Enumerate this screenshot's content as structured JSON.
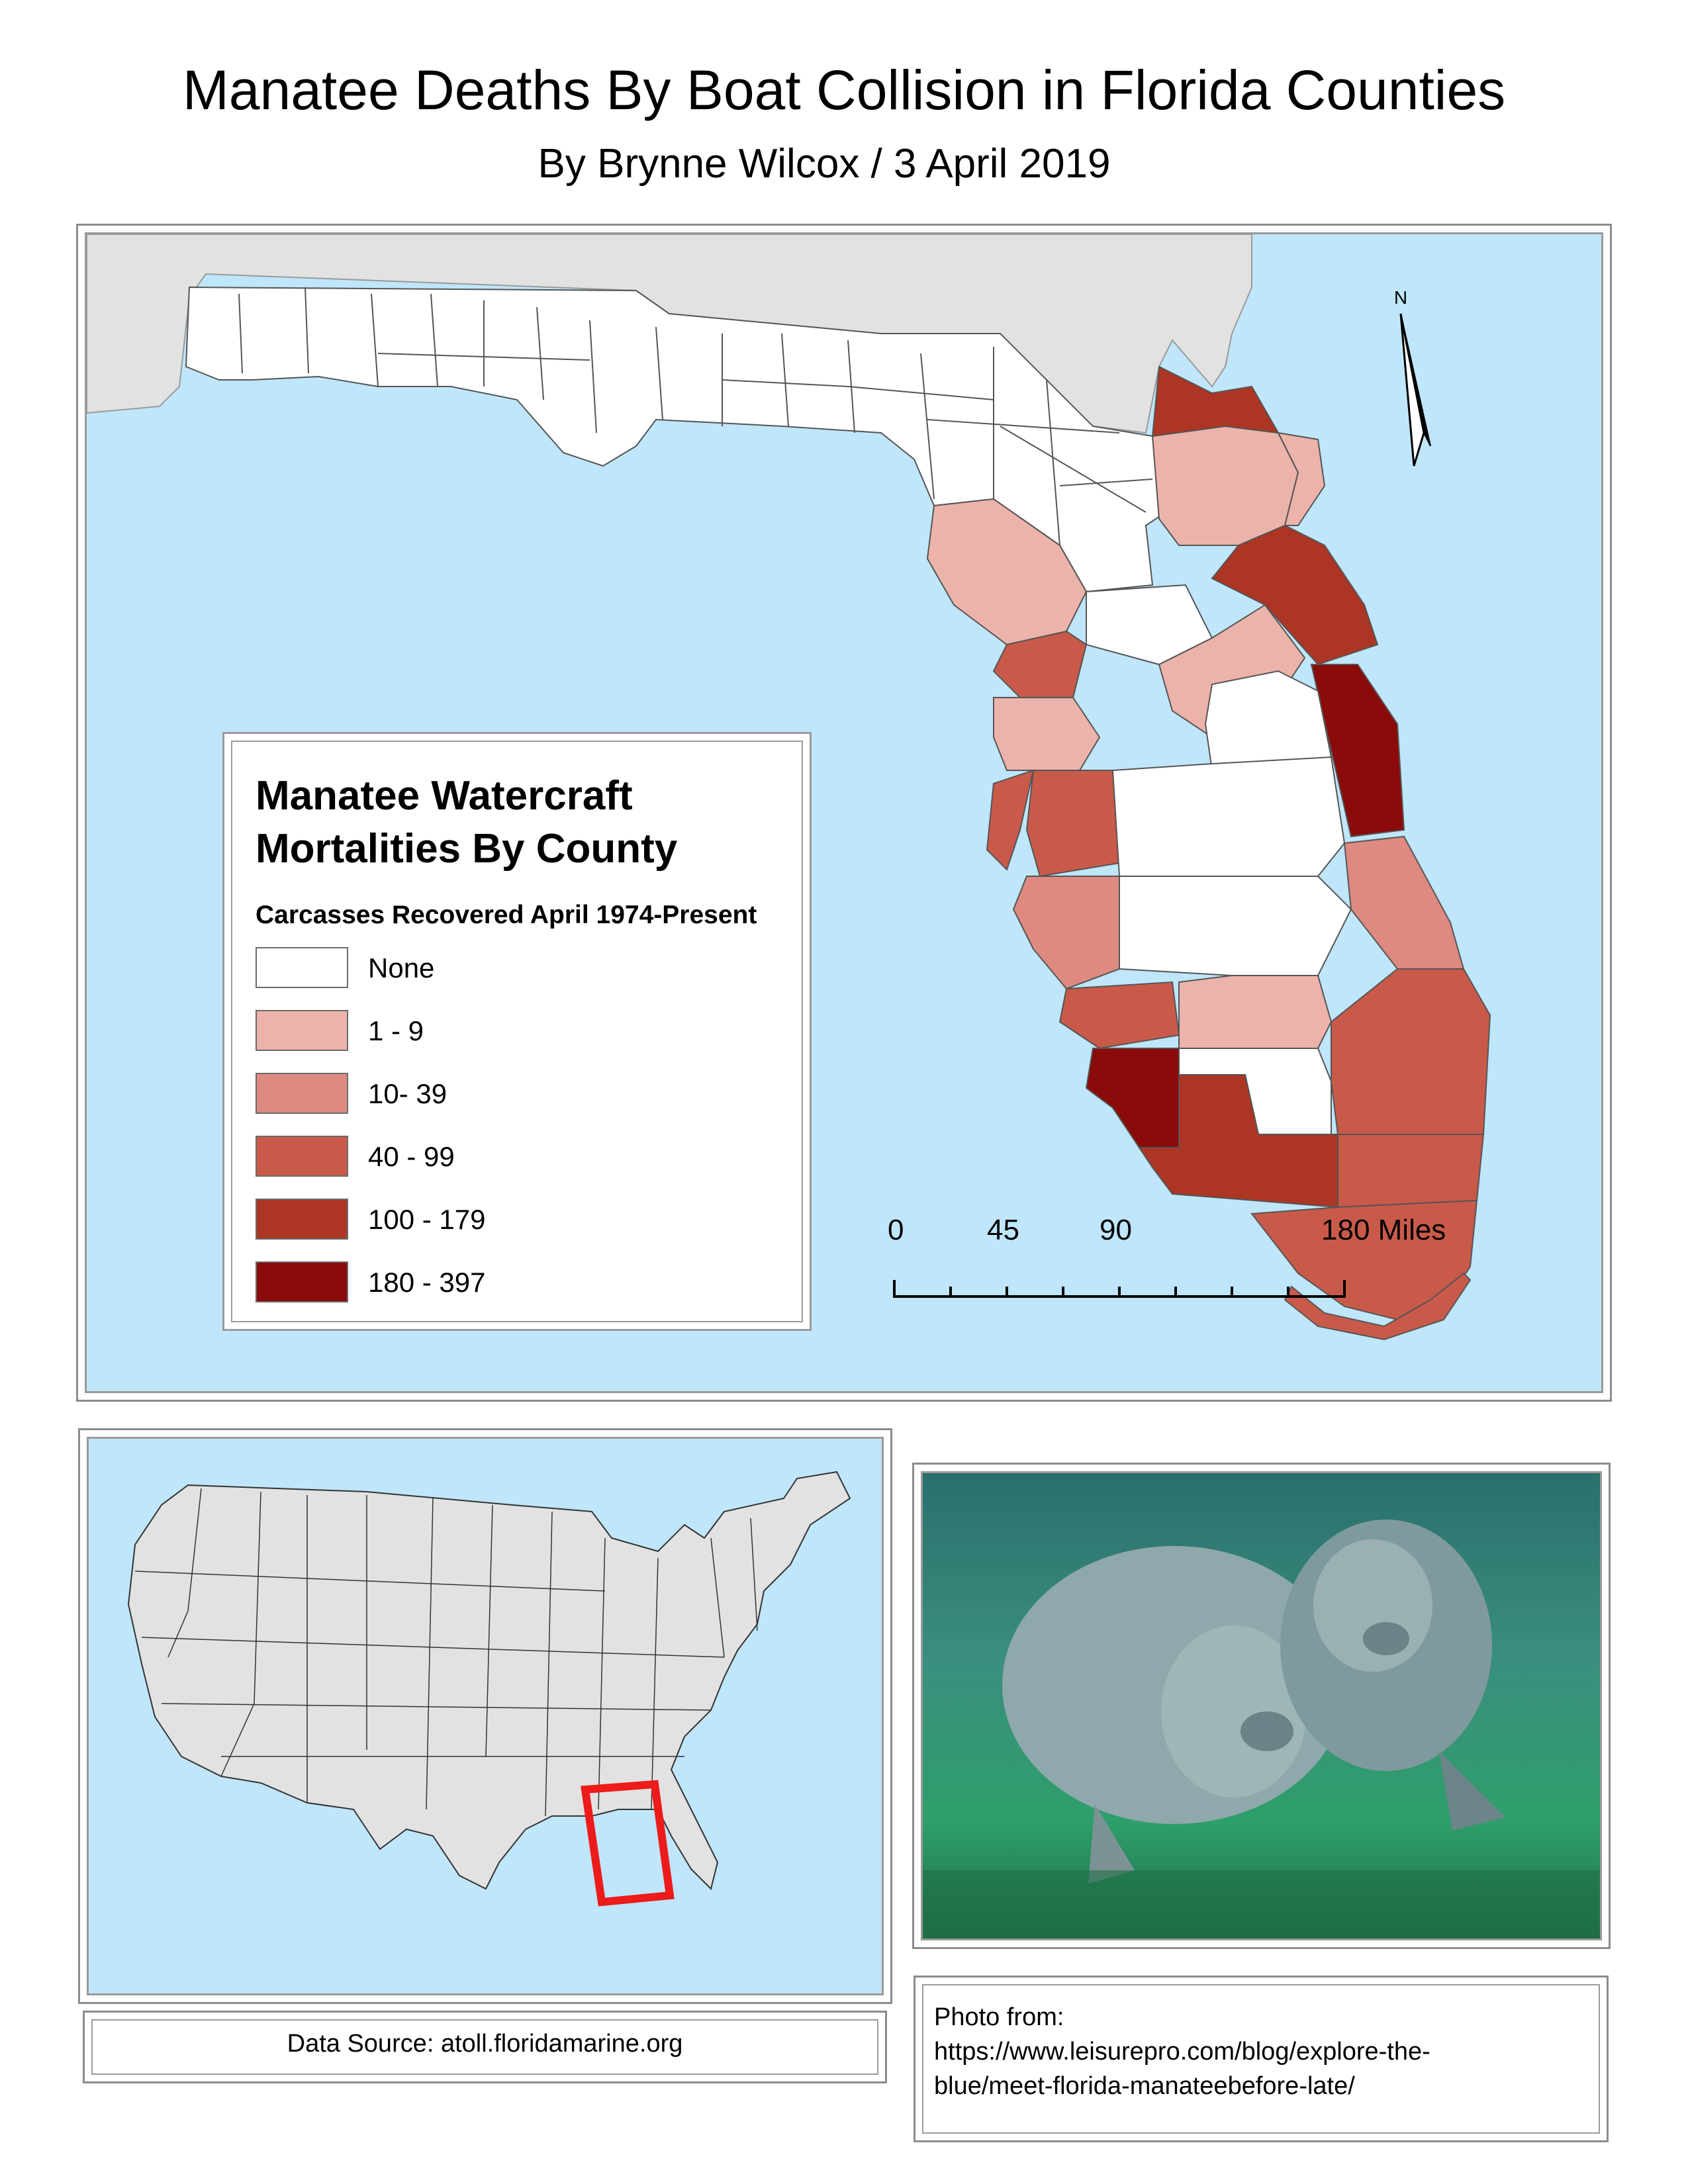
{
  "title": "Manatee Deaths By Boat Collision in Florida Counties",
  "subtitle": "By Brynne Wilcox /  3 April 2019",
  "north_arrow_label": "N",
  "legend": {
    "title": "Manatee Watercraft Mortalities By County",
    "subtitle": "Carcasses Recovered April 1974-Present",
    "classes": [
      {
        "label": "None",
        "color": "#ffffff"
      },
      {
        "label": "1 - 9",
        "color": "#ecb3aa"
      },
      {
        "label": "10- 39",
        "color": "#de8a80"
      },
      {
        "label": "40 - 99",
        "color": "#c95a4a"
      },
      {
        "label": "100 - 179",
        "color": "#ad3524"
      },
      {
        "label": "180 - 397",
        "color": "#8b0a0a"
      }
    ]
  },
  "scale_bar": {
    "ticks": [
      "0",
      "45",
      "90",
      "180 Miles"
    ]
  },
  "colors": {
    "water": "#bfe6fa",
    "land_outside": "#e2e2e2",
    "locator_highlight": "#ee1b1b"
  },
  "data_source": "Data Source: atoll.floridamarine.org",
  "photo_credit": {
    "lines": [
      "Photo from:",
      "https://www.leisurepro.com/blog/explore-the-",
      "blue/meet-florida-manateebefore-late/"
    ]
  }
}
